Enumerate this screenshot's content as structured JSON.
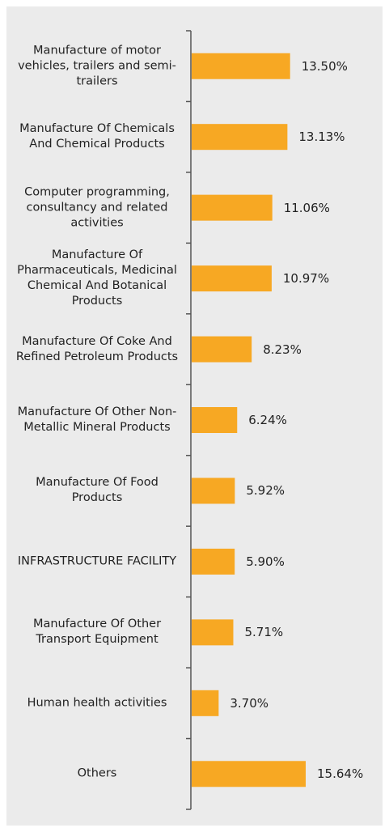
{
  "chart_data": {
    "type": "bar",
    "orientation": "horizontal",
    "color": "#f7a823",
    "categories": [
      "Manufacture of motor vehicles, trailers and semi-trailers",
      "Manufacture Of Chemicals And Chemical Products",
      "Computer programming, consultancy and related activities",
      "Manufacture Of Pharmaceuticals, Medicinal Chemical And Botanical Products",
      "Manufacture Of Coke And Refined Petroleum Products",
      "Manufacture Of Other Non-Metallic Mineral Products",
      "Manufacture Of Food Products",
      "INFRASTRUCTURE FACILITY",
      "Manufacture Of Other Transport Equipment",
      "Human health activities",
      "Others"
    ],
    "values": [
      13.5,
      13.13,
      11.06,
      10.97,
      8.23,
      6.24,
      5.92,
      5.9,
      5.71,
      3.7,
      15.64
    ],
    "value_labels": [
      "13.50%",
      "13.13%",
      "11.06%",
      "10.97%",
      "8.23%",
      "6.24%",
      "5.92%",
      "5.90%",
      "5.71%",
      "3.70%",
      "15.64%"
    ]
  }
}
